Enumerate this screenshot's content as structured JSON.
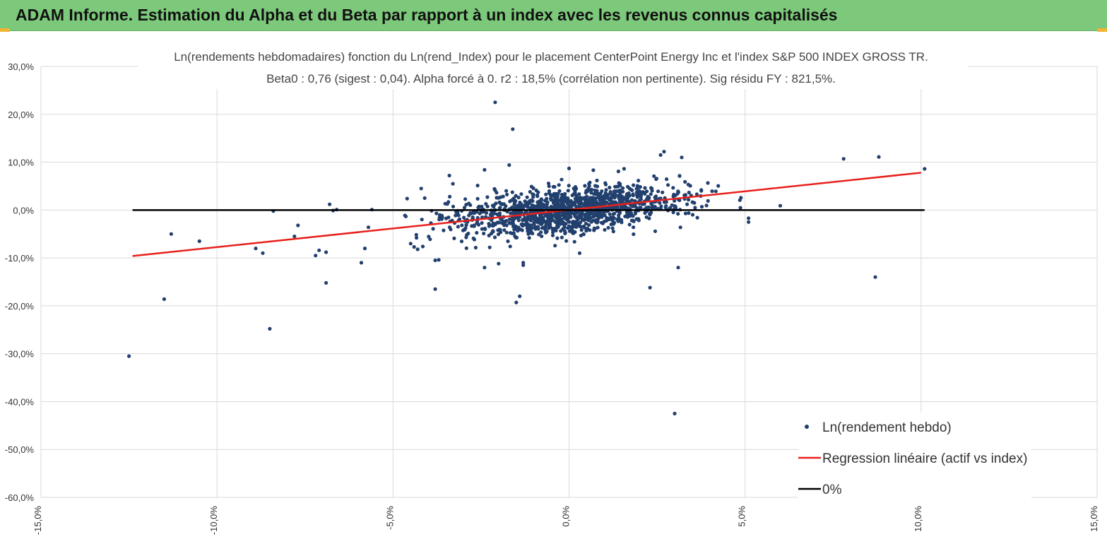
{
  "header": {
    "title": "ADAM Informe. Estimation du Alpha et du Beta par rapport à un index avec les revenus connus capitalisés"
  },
  "colors": {
    "header_bg": "#7dc97b",
    "points": "#22406e",
    "regression": "#e8201c",
    "zero_line": "#000000",
    "grid": "#d9d9d9"
  },
  "chart_data": {
    "type": "scatter",
    "title": [
      "Ln(rendements hebdomadaires) fonction du Ln(rend_Index) pour le placement CenterPoint Energy Inc et l'index S&P 500 INDEX GROSS TR.",
      "Beta0 : 0,76 (sigest : 0,04). Alpha forcé à 0. r2 : 18,5% (corrélation non pertinente). Sig résidu FY : 821,5%."
    ],
    "xlim": [
      -0.15,
      0.15
    ],
    "ylim": [
      -0.6,
      0.3
    ],
    "x_ticks": [
      "-15,0%",
      "-10,0%",
      "-5,0%",
      "0,0%",
      "5,0%",
      "10,0%",
      "15,0%"
    ],
    "y_ticks": [
      "30,0%",
      "20,0%",
      "10,0%",
      "0,0%",
      "-10,0%",
      "-20,0%",
      "-30,0%",
      "-40,0%",
      "-50,0%",
      "-60,0%"
    ],
    "beta": 0.76,
    "legend": [
      {
        "label": "Ln(rendement hebdo)",
        "kind": "marker"
      },
      {
        "label": "Regression linéaire (actif vs index)",
        "kind": "line"
      },
      {
        "label": "0%",
        "kind": "line"
      }
    ],
    "legend_position": "bottom-right",
    "regression": {
      "x": [
        -0.124,
        0.1
      ],
      "y": [
        -0.096,
        0.078
      ]
    },
    "zero_line": {
      "x": [
        -0.124,
        0.101
      ],
      "y": [
        0,
        0
      ]
    },
    "outliers": {
      "x": [
        -0.125,
        -0.115,
        -0.113,
        -0.105,
        -0.089,
        -0.087,
        -0.085,
        -0.084,
        -0.078,
        -0.077,
        -0.072,
        -0.071,
        -0.069,
        -0.069,
        -0.068,
        -0.067,
        -0.066,
        -0.059,
        -0.058,
        -0.057,
        -0.056,
        -0.046,
        -0.045,
        -0.044,
        -0.043,
        -0.042,
        -0.041,
        -0.038,
        -0.038,
        -0.037,
        -0.036,
        -0.034,
        -0.033,
        -0.024,
        -0.024,
        -0.021,
        -0.02,
        -0.017,
        -0.016,
        -0.015,
        -0.014,
        -0.013,
        -0.013,
        0.0,
        0.002,
        0.003,
        0.023,
        0.026,
        0.027,
        0.03,
        0.031,
        0.032,
        0.078,
        0.087,
        0.088,
        0.101,
        0.06,
        0.051,
        0.051
      ],
      "y": [
        -0.305,
        -0.186,
        -0.05,
        -0.065,
        -0.08,
        -0.09,
        -0.248,
        -0.002,
        -0.055,
        -0.032,
        -0.095,
        -0.084,
        -0.088,
        -0.152,
        0.012,
        -0.001,
        0.001,
        -0.11,
        -0.08,
        -0.036,
        0.001,
        0.024,
        -0.07,
        -0.077,
        -0.082,
        0.045,
        0.025,
        -0.105,
        -0.165,
        -0.104,
        -0.015,
        0.072,
        0.055,
        -0.12,
        0.084,
        0.225,
        -0.112,
        0.094,
        0.169,
        -0.193,
        -0.18,
        -0.11,
        -0.115,
        0.087,
        0.002,
        -0.09,
        -0.162,
        0.115,
        0.122,
        -0.425,
        -0.12,
        0.11,
        0.107,
        -0.14,
        0.111,
        0.086,
        0.009,
        -0.017,
        -0.025
      ]
    },
    "cloud_model": {
      "n": 1350,
      "seed": 42,
      "x_sd": 0.016,
      "slope": 0.76,
      "resid_sd": 0.024
    }
  }
}
